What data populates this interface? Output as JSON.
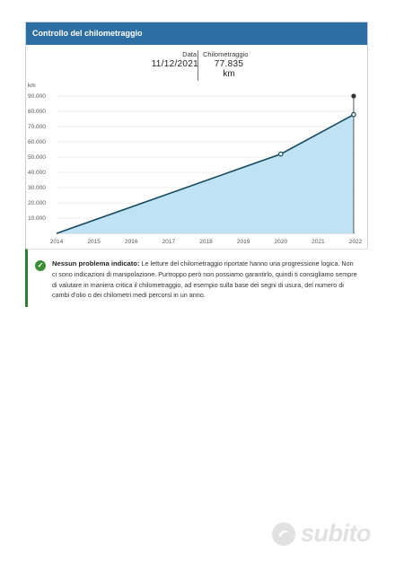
{
  "header": {
    "title": "Controllo del chilometraggio"
  },
  "readout": {
    "date_label": "Data",
    "date_value": "11/12/2021",
    "km_label": "Chilometraggio",
    "km_value": "77.835",
    "km_unit": "km"
  },
  "chart_data": {
    "type": "area",
    "ylabel": "km",
    "ylim": [
      0,
      90000
    ],
    "xlim": [
      2014,
      2022
    ],
    "y_ticks": [
      "90.000",
      "80.000",
      "70.000",
      "60.000",
      "50.000",
      "40.000",
      "30.000",
      "20.000",
      "10.000"
    ],
    "x_ticks": [
      "2014",
      "2015",
      "2016",
      "2017",
      "2018",
      "2019",
      "2020",
      "2021",
      "2022"
    ],
    "points": [
      {
        "x": 2014.0,
        "y": 0
      },
      {
        "x": 2020.0,
        "y": 52000
      },
      {
        "x": 2021.95,
        "y": 77835
      }
    ],
    "marker_top": {
      "x": 2021.95,
      "y": 90000
    },
    "fill_color": "#bfe3f5",
    "line_color": "#164a5e",
    "grid": true
  },
  "note": {
    "title": "Nessun problema indicato:",
    "text": "Le letture del chilometraggio riportate hanno una progressione logica. Non ci sono indicazioni di manipolazione. Purtroppo però non possiamo garantirlo, quindi ti consigliamo sempre di valutare in maniera critica il chilometraggio, ad esempio sulla base dei segni di usura, del numero di cambi d'olio o dei chilometri medi percorsi in un anno.",
    "icon": "check-circle-icon",
    "accent": "#2e7d32"
  },
  "watermark": {
    "text": "subito",
    "icon": "subito-logo-icon"
  }
}
